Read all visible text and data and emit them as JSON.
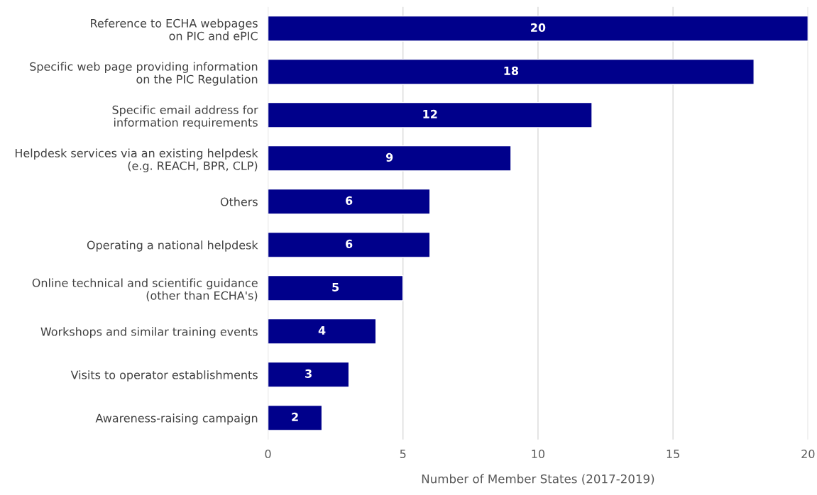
{
  "chart_data": {
    "type": "bar",
    "orientation": "horizontal",
    "xlabel": "Number of Member States (2017-2019)",
    "categories": [
      "Reference to ECHA webpages\non PIC and ePIC",
      "Specific web page providing information\non the PIC Regulation",
      "Specific email address for\ninformation requirements",
      "Helpdesk services via an existing helpdesk\n(e.g. REACH, BPR, CLP)",
      "Others",
      "Operating a national helpdesk",
      "Online technical and scientific guidance\n(other than ECHA's)",
      "Workshops and similar training events",
      "Visits to operator establishments",
      "Awareness-raising campaign"
    ],
    "values": [
      20,
      18,
      12,
      9,
      6,
      6,
      5,
      4,
      3,
      2
    ],
    "color": "#00008b",
    "xlim": [
      0,
      20
    ],
    "xticks": [
      0,
      5,
      10,
      15,
      20
    ],
    "grid": "x",
    "data_labels": true,
    "legend": false
  }
}
